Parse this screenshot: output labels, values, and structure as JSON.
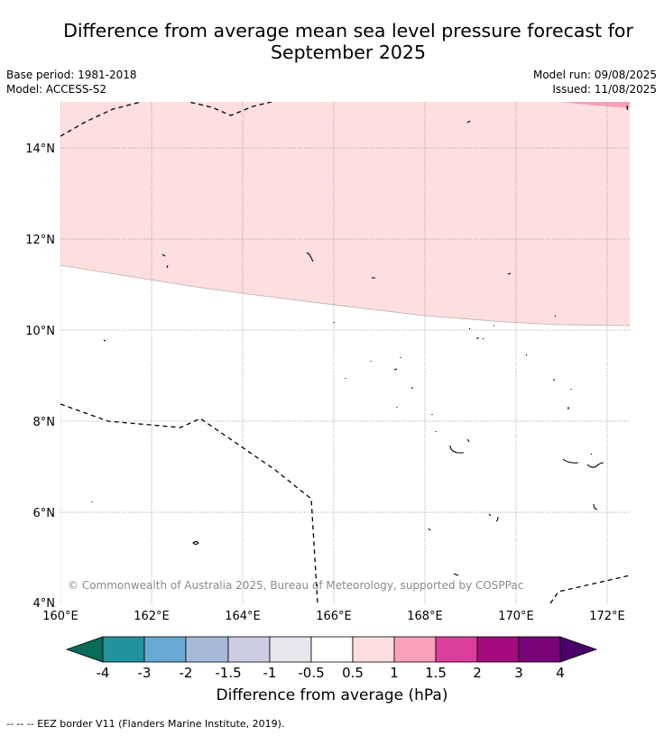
{
  "title_line1": "Difference from average mean sea level pressure forecast for",
  "title_line2": "September 2025",
  "base_period": "Base period: 1981-2018",
  "model": "Model: ACCESS-S2",
  "model_run": "Model run: 09/08/2025",
  "issued": "Issued: 11/08/2025",
  "copyright": "© Commonwealth of Australia 2025, Bureau of Meteorology, supported by COSPPac",
  "map": {
    "lon_ticks": [
      "160°E",
      "162°E",
      "164°E",
      "166°E",
      "168°E",
      "170°E",
      "172°E"
    ],
    "lat_ticks": [
      "14°N",
      "12°N",
      "10°N",
      "8°N",
      "6°N",
      "4°N"
    ],
    "lon_range": [
      160,
      172.5
    ],
    "lat_range": [
      4,
      15
    ],
    "anomaly_zones": [
      {
        "range": "0.5 to 1 hPa",
        "color": "#fddfdf",
        "southern_boundary_lat": [
          11.4,
          10.1
        ]
      },
      {
        "range": "1 to 1.5 hPa",
        "color": "#f8a1b8"
      }
    ]
  },
  "colorbar": {
    "title": "Difference from average (hPa)",
    "ticks": [
      "-4",
      "-3",
      "-2",
      "-1.5",
      "-1",
      "-0.5",
      "0.5",
      "1",
      "1.5",
      "2",
      "3",
      "4"
    ],
    "colors": [
      "#096b5a",
      "#21939c",
      "#68aad4",
      "#a6b9d9",
      "#cccce4",
      "#e8e7ee",
      "#ffffff",
      "#fddfdf",
      "#f8a1b8",
      "#da3e9c",
      "#a30a7c",
      "#7a0277",
      "#4a006a"
    ]
  },
  "footer": "--  --  -- EEZ border V11 (Flanders Marine Institute, 2019)."
}
